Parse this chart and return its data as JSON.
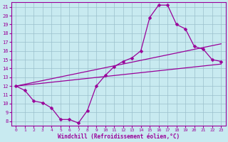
{
  "xlabel": "Windchill (Refroidissement éolien,°C)",
  "bg_color": "#c8eaf0",
  "grid_color": "#9bbfcc",
  "line_color": "#990099",
  "marker": "D",
  "markersize": 2.5,
  "linewidth": 0.9,
  "x_min": -0.5,
  "x_max": 23.5,
  "y_min": 7.5,
  "y_max": 21.5,
  "curve1_x": [
    0,
    1,
    2,
    3,
    4,
    5,
    6,
    7,
    8,
    9,
    10,
    11,
    12,
    13,
    14,
    15,
    16,
    17,
    18,
    19,
    20,
    21,
    22,
    23
  ],
  "curve1_y": [
    12,
    11.5,
    10.3,
    10.1,
    9.5,
    8.2,
    8.2,
    7.8,
    9.2,
    12.0,
    13.2,
    14.2,
    14.8,
    15.2,
    16.0,
    19.8,
    21.2,
    21.2,
    19.0,
    18.5,
    16.5,
    16.2,
    15.0,
    14.8
  ],
  "curve2_x": [
    0,
    23
  ],
  "curve2_y": [
    12.0,
    14.5
  ],
  "curve3_x": [
    0,
    23
  ],
  "curve3_y": [
    12.0,
    16.8
  ],
  "xticks": [
    0,
    1,
    2,
    3,
    4,
    5,
    6,
    7,
    8,
    9,
    10,
    11,
    12,
    13,
    14,
    15,
    16,
    17,
    18,
    19,
    20,
    21,
    22,
    23
  ],
  "yticks": [
    8,
    9,
    10,
    11,
    12,
    13,
    14,
    15,
    16,
    17,
    18,
    19,
    20,
    21
  ]
}
